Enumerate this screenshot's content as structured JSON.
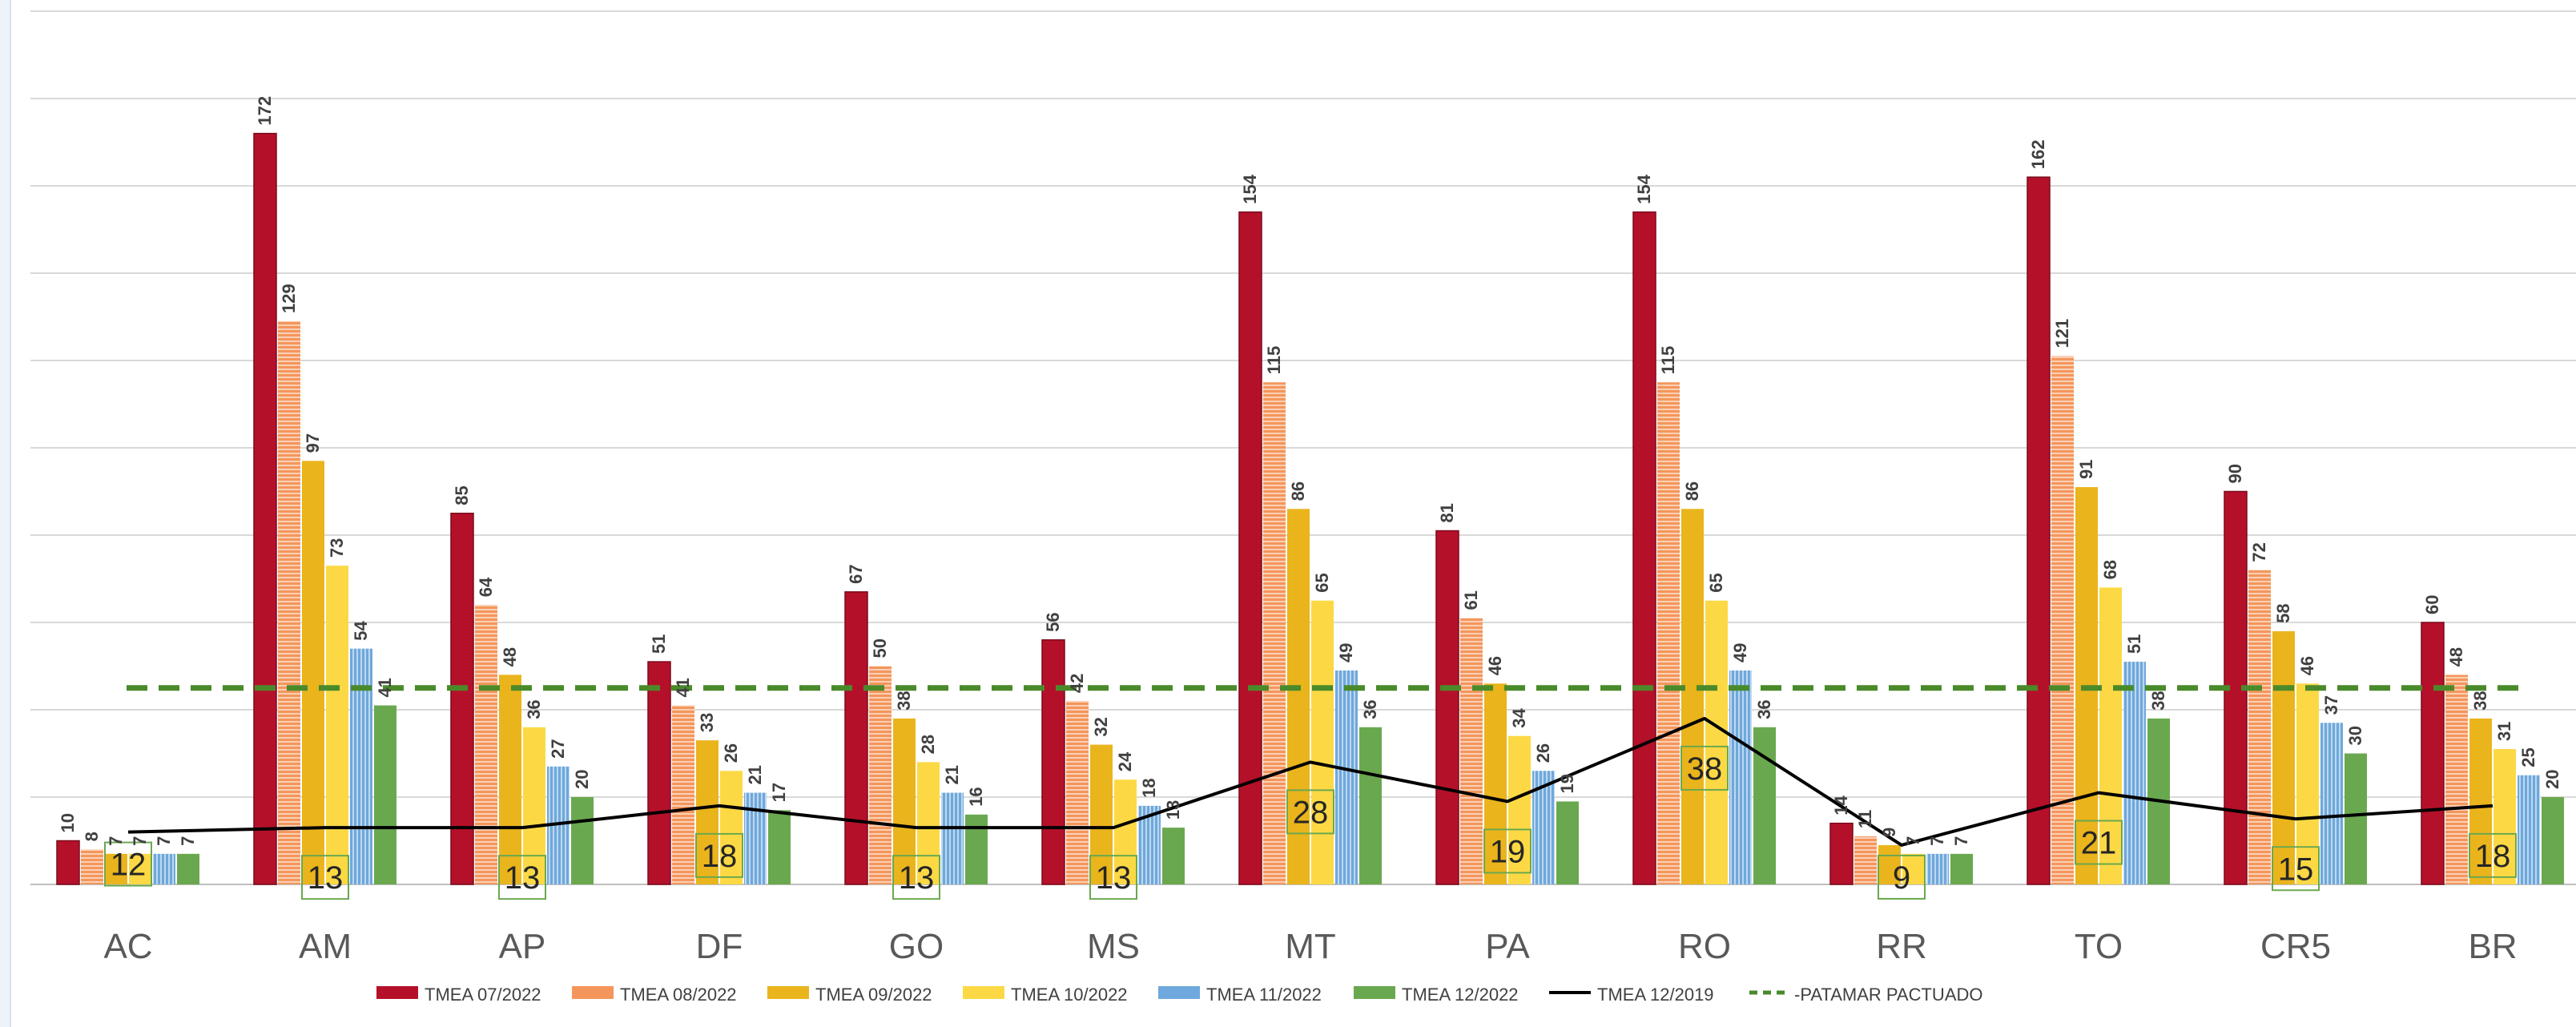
{
  "chart_data": {
    "type": "bar",
    "categories": [
      "AC",
      "AM",
      "AP",
      "DF",
      "GO",
      "MS",
      "MT",
      "PA",
      "RO",
      "RR",
      "TO",
      "CR5",
      "BR"
    ],
    "ylim": [
      0,
      200
    ],
    "grid": true,
    "legend_position": "bottom",
    "series": [
      {
        "name": "TMEA 07/2022",
        "color": "#b5102a",
        "values": [
          10,
          172,
          85,
          51,
          67,
          56,
          154,
          81,
          154,
          14,
          162,
          90,
          60
        ]
      },
      {
        "name": "TMEA 08/2022",
        "color": "#f4965c",
        "values": [
          8,
          129,
          64,
          41,
          50,
          42,
          115,
          61,
          115,
          11,
          121,
          72,
          48
        ]
      },
      {
        "name": "TMEA 09/2022",
        "color": "#eab41c",
        "values": [
          7,
          97,
          48,
          33,
          38,
          32,
          86,
          46,
          86,
          9,
          91,
          58,
          38
        ]
      },
      {
        "name": "TMEA 10/2022",
        "color": "#fcd944",
        "values": [
          7,
          73,
          36,
          26,
          28,
          24,
          65,
          34,
          65,
          7,
          68,
          46,
          31
        ]
      },
      {
        "name": "TMEA 11/2022",
        "color": "#6ea8dc",
        "values": [
          7,
          54,
          27,
          21,
          21,
          18,
          49,
          26,
          49,
          7,
          51,
          37,
          25
        ]
      },
      {
        "name": "TMEA 12/2022",
        "color": "#6aa84f",
        "values": [
          7,
          41,
          20,
          17,
          16,
          13,
          36,
          19,
          36,
          7,
          38,
          30,
          20
        ]
      }
    ],
    "line_series": {
      "name": "TMEA 12/2019",
      "color": "#000000",
      "values": [
        12,
        13,
        13,
        18,
        13,
        13,
        28,
        19,
        38,
        9,
        21,
        15,
        18
      ]
    },
    "threshold": {
      "name": "PATAMAR PACTUADO",
      "color": "#4a8a2a",
      "value": 45
    }
  }
}
